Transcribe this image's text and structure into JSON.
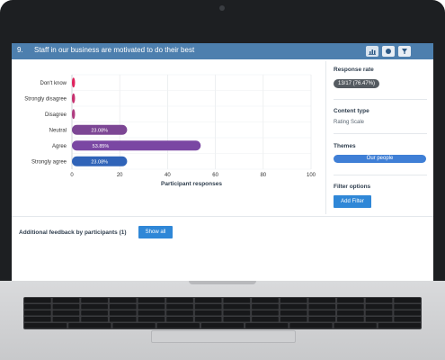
{
  "question": {
    "number": "9.",
    "title": "Staff in our business are motivated to do their best"
  },
  "toolbar": {
    "chart_icon": "bar-chart-icon",
    "info_icon": "info-icon",
    "filter_icon": "filter-icon"
  },
  "chart_data": {
    "type": "bar",
    "orientation": "horizontal",
    "categories": [
      "Don't know",
      "Strongly disagree",
      "Disagree",
      "Neutral",
      "Agree",
      "Strongly agree"
    ],
    "values": [
      0,
      0,
      0,
      23.08,
      53.85,
      23.08
    ],
    "value_labels": [
      "",
      "",
      "",
      "23.08%",
      "53.85%",
      "23.08%"
    ],
    "colors": [
      "#e0245e",
      "#c8316f",
      "#b03d81",
      "#7c4694",
      "#7a47a3",
      "#2f63b8"
    ],
    "xlabel": "Participant responses",
    "ylabel": "",
    "xlim": [
      0,
      100
    ],
    "xticks": [
      "0",
      "20",
      "40",
      "60",
      "80",
      "100"
    ],
    "grid": true
  },
  "sidebar": {
    "response_rate_label": "Response rate",
    "response_rate_value": "13/17 (76.47%)",
    "content_type_label": "Content type",
    "content_type_value": "Rating Scale",
    "themes_label": "Themes",
    "theme_value": "Our people",
    "filter_label": "Filter options",
    "add_filter_label": "Add Filter"
  },
  "feedback": {
    "label": "Additional feedback by participants (1)",
    "show_all_label": "Show all"
  }
}
